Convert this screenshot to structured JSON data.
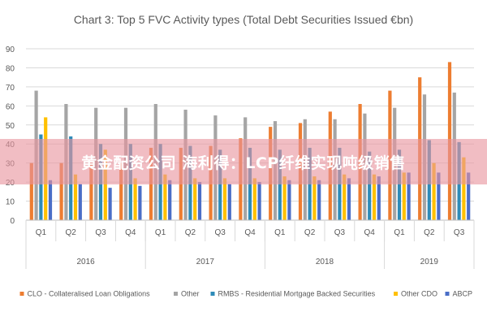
{
  "chart_data": {
    "type": "bar",
    "title": "Chart 3: Top 5 FVC Activity types (Total Debt Securities Issued €bn)",
    "ylim": [
      0,
      90
    ],
    "yticks": [
      0,
      10,
      20,
      30,
      40,
      50,
      60,
      70,
      80,
      90
    ],
    "grid": true,
    "legend_position": "bottom",
    "categories": [
      "Q1",
      "Q2",
      "Q3",
      "Q4",
      "Q1",
      "Q2",
      "Q3",
      "Q4",
      "Q1",
      "Q2",
      "Q3",
      "Q4",
      "Q1",
      "Q2",
      "Q3"
    ],
    "groups": [
      {
        "label": "2016",
        "count": 4
      },
      {
        "label": "2017",
        "count": 4
      },
      {
        "label": "2018",
        "count": 4
      },
      {
        "label": "2019",
        "count": 3
      }
    ],
    "series": [
      {
        "name": "CLO - Collateralised Loan Obligations",
        "color": "#ed7d31",
        "values": [
          30,
          30,
          30,
          30,
          38,
          38,
          39,
          43,
          49,
          51,
          57,
          61,
          68,
          75,
          83
        ]
      },
      {
        "name": "Other",
        "color": "#a5a5a5",
        "values": [
          68,
          61,
          59,
          59,
          61,
          58,
          55,
          54,
          52,
          53,
          53,
          56,
          59,
          66,
          67
        ]
      },
      {
        "name": "RMBS - Residential Mortgage Backed Securities",
        "color": "#2e8bb8",
        "values": [
          45,
          44,
          40,
          40,
          40,
          39,
          37,
          38,
          37,
          38,
          38,
          36,
          37,
          42,
          41
        ]
      },
      {
        "name": "Other CDO",
        "color": "#ffc000",
        "values": [
          54,
          24,
          37,
          22,
          24,
          22,
          22,
          22,
          23,
          23,
          24,
          24,
          25,
          30,
          33
        ]
      },
      {
        "name": "ABCP",
        "color": "#4a6ec7",
        "values": [
          21,
          19,
          17,
          18,
          21,
          20,
          19,
          20,
          21,
          21,
          22,
          23,
          25,
          25,
          25
        ]
      }
    ]
  },
  "watermark": {
    "text": "黄金配资公司 海利得：LCP纤维实现吨级销售"
  }
}
